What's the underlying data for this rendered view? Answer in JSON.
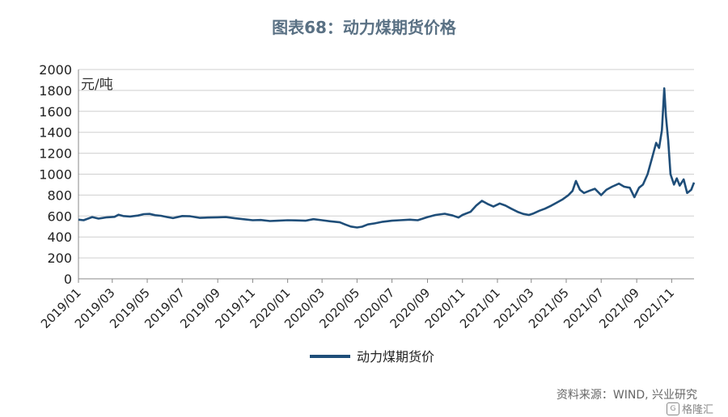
{
  "title": "图表68：动力煤期货价格",
  "source": "资料来源：WIND, 兴业研究",
  "watermark": {
    "text": "格隆汇",
    "icon": "G"
  },
  "chart_data": {
    "type": "line",
    "unit_label": "元/吨",
    "ylim": [
      0,
      2000
    ],
    "yticks": [
      0,
      200,
      400,
      600,
      800,
      1000,
      1200,
      1400,
      1600,
      1800,
      2000
    ],
    "xlim": [
      "2019-01-01",
      "2021-12-10"
    ],
    "xticks": [
      "2019/01",
      "2019/03",
      "2019/05",
      "2019/07",
      "2019/09",
      "2019/11",
      "2020/01",
      "2020/03",
      "2020/05",
      "2020/07",
      "2020/09",
      "2020/11",
      "2021/01",
      "2021/03",
      "2021/05",
      "2021/07",
      "2021/09",
      "2021/11"
    ],
    "grid": "horizontal",
    "legend": "bottom",
    "series_color": "#1f4e79",
    "series": [
      {
        "name": "动力煤期货价",
        "points": [
          [
            "2019-01-01",
            565
          ],
          [
            "2019-01-10",
            560
          ],
          [
            "2019-01-25",
            590
          ],
          [
            "2019-02-05",
            575
          ],
          [
            "2019-02-20",
            588
          ],
          [
            "2019-03-05",
            592
          ],
          [
            "2019-03-12",
            612
          ],
          [
            "2019-03-20",
            600
          ],
          [
            "2019-04-01",
            595
          ],
          [
            "2019-04-15",
            605
          ],
          [
            "2019-04-25",
            618
          ],
          [
            "2019-05-05",
            620
          ],
          [
            "2019-05-15",
            608
          ],
          [
            "2019-05-25",
            602
          ],
          [
            "2019-06-05",
            590
          ],
          [
            "2019-06-15",
            580
          ],
          [
            "2019-07-01",
            600
          ],
          [
            "2019-07-15",
            598
          ],
          [
            "2019-08-01",
            582
          ],
          [
            "2019-08-15",
            585
          ],
          [
            "2019-09-01",
            588
          ],
          [
            "2019-09-15",
            590
          ],
          [
            "2019-10-01",
            578
          ],
          [
            "2019-10-15",
            570
          ],
          [
            "2019-11-01",
            560
          ],
          [
            "2019-11-15",
            562
          ],
          [
            "2019-12-01",
            552
          ],
          [
            "2019-12-15",
            555
          ],
          [
            "2020-01-01",
            560
          ],
          [
            "2020-01-15",
            558
          ],
          [
            "2020-02-01",
            555
          ],
          [
            "2020-02-15",
            570
          ],
          [
            "2020-03-01",
            560
          ],
          [
            "2020-03-15",
            550
          ],
          [
            "2020-04-01",
            540
          ],
          [
            "2020-04-10",
            520
          ],
          [
            "2020-04-20",
            500
          ],
          [
            "2020-05-01",
            490
          ],
          [
            "2020-05-10",
            498
          ],
          [
            "2020-05-20",
            520
          ],
          [
            "2020-06-01",
            530
          ],
          [
            "2020-06-15",
            545
          ],
          [
            "2020-07-01",
            555
          ],
          [
            "2020-07-15",
            560
          ],
          [
            "2020-08-01",
            565
          ],
          [
            "2020-08-15",
            560
          ],
          [
            "2020-09-01",
            590
          ],
          [
            "2020-09-15",
            610
          ],
          [
            "2020-10-01",
            622
          ],
          [
            "2020-10-15",
            605
          ],
          [
            "2020-10-25",
            585
          ],
          [
            "2020-11-01",
            610
          ],
          [
            "2020-11-15",
            640
          ],
          [
            "2020-11-25",
            700
          ],
          [
            "2020-12-05",
            745
          ],
          [
            "2020-12-15",
            715
          ],
          [
            "2020-12-25",
            690
          ],
          [
            "2021-01-05",
            720
          ],
          [
            "2021-01-15",
            700
          ],
          [
            "2021-01-25",
            670
          ],
          [
            "2021-02-05",
            640
          ],
          [
            "2021-02-15",
            620
          ],
          [
            "2021-02-25",
            610
          ],
          [
            "2021-03-05",
            625
          ],
          [
            "2021-03-15",
            650
          ],
          [
            "2021-03-25",
            670
          ],
          [
            "2021-04-05",
            700
          ],
          [
            "2021-04-15",
            730
          ],
          [
            "2021-04-25",
            760
          ],
          [
            "2021-05-05",
            800
          ],
          [
            "2021-05-12",
            840
          ],
          [
            "2021-05-18",
            935
          ],
          [
            "2021-05-25",
            850
          ],
          [
            "2021-06-01",
            820
          ],
          [
            "2021-06-10",
            840
          ],
          [
            "2021-06-20",
            860
          ],
          [
            "2021-07-01",
            800
          ],
          [
            "2021-07-10",
            850
          ],
          [
            "2021-07-20",
            880
          ],
          [
            "2021-08-01",
            910
          ],
          [
            "2021-08-10",
            880
          ],
          [
            "2021-08-20",
            870
          ],
          [
            "2021-08-28",
            780
          ],
          [
            "2021-09-05",
            870
          ],
          [
            "2021-09-12",
            900
          ],
          [
            "2021-09-20",
            1000
          ],
          [
            "2021-09-28",
            1160
          ],
          [
            "2021-10-05",
            1300
          ],
          [
            "2021-10-10",
            1250
          ],
          [
            "2021-10-15",
            1420
          ],
          [
            "2021-10-19",
            1820
          ],
          [
            "2021-10-22",
            1550
          ],
          [
            "2021-10-26",
            1320
          ],
          [
            "2021-10-30",
            1000
          ],
          [
            "2021-11-05",
            900
          ],
          [
            "2021-11-10",
            960
          ],
          [
            "2021-11-15",
            890
          ],
          [
            "2021-11-22",
            950
          ],
          [
            "2021-11-28",
            820
          ],
          [
            "2021-12-05",
            850
          ],
          [
            "2021-12-10",
            920
          ]
        ]
      }
    ]
  }
}
